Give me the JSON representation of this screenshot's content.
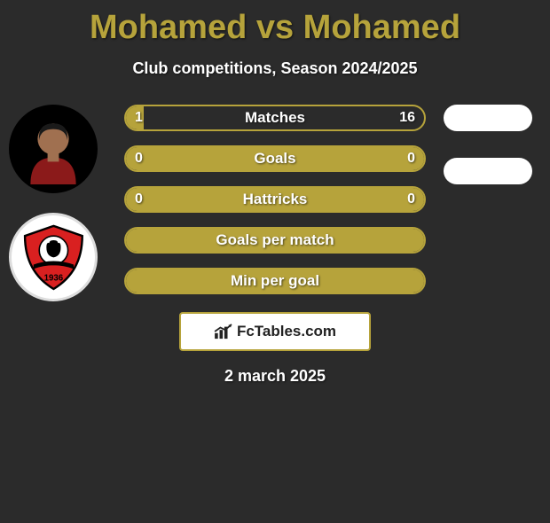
{
  "title": "Mohamed vs Mohamed",
  "subtitle": "Club competitions, Season 2024/2025",
  "brand": "FcTables.com",
  "date": "2 march 2025",
  "colors": {
    "accent": "#b6a33b",
    "background": "#2b2b2b",
    "text": "#ffffff"
  },
  "bars": [
    {
      "label": "Matches",
      "left": "1",
      "right": "16",
      "left_pct": 6
    },
    {
      "label": "Goals",
      "left": "0",
      "right": "0",
      "left_pct": 100
    },
    {
      "label": "Hattricks",
      "left": "0",
      "right": "0",
      "left_pct": 100
    },
    {
      "label": "Goals per match",
      "left": "",
      "right": "",
      "left_pct": 100
    },
    {
      "label": "Min per goal",
      "left": "",
      "right": "",
      "left_pct": 100
    }
  ]
}
